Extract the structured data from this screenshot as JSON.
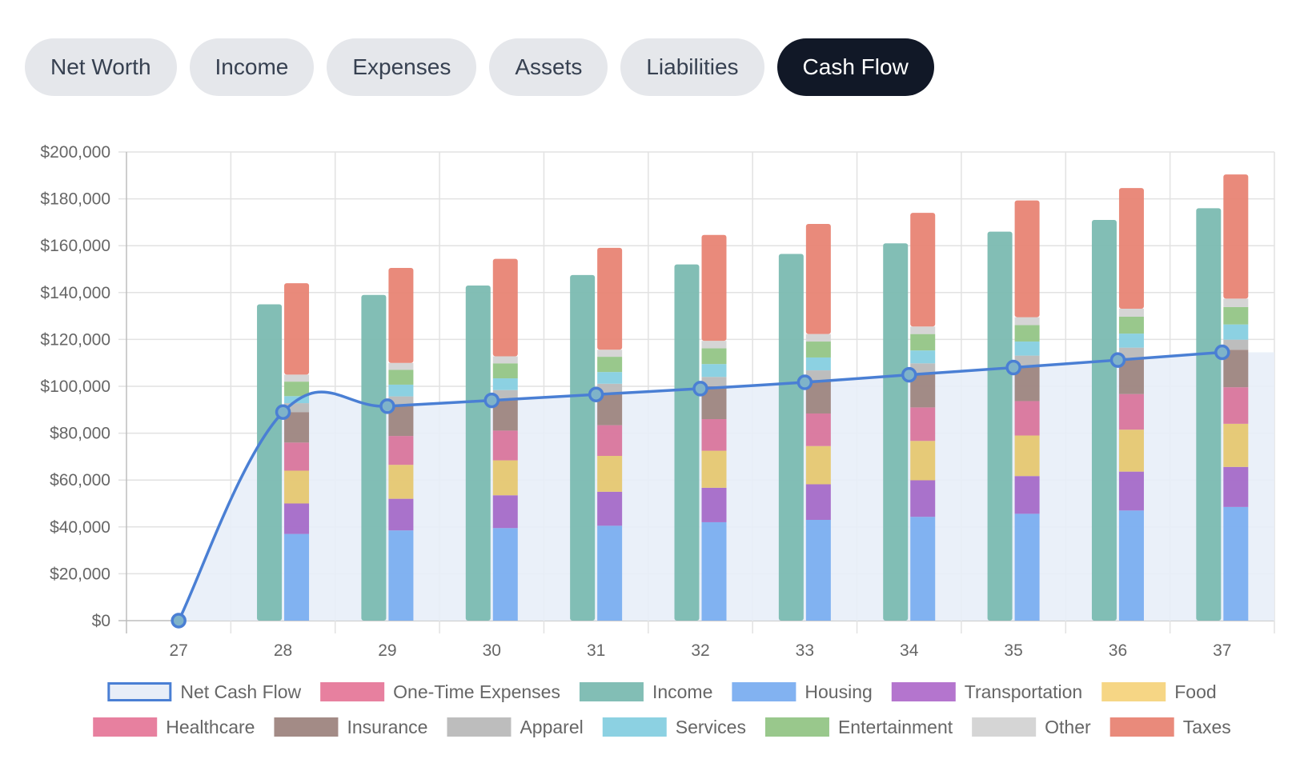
{
  "tabs": [
    {
      "label": "Net Worth",
      "active": false
    },
    {
      "label": "Income",
      "active": false
    },
    {
      "label": "Expenses",
      "active": false
    },
    {
      "label": "Assets",
      "active": false
    },
    {
      "label": "Liabilities",
      "active": false
    },
    {
      "label": "Cash Flow",
      "active": true
    }
  ],
  "chart_data": {
    "type": "bar",
    "title": "",
    "xlabel": "",
    "ylabel": "",
    "ylim": [
      0,
      200000
    ],
    "yticks": [
      "$0",
      "$20,000",
      "$40,000",
      "$60,000",
      "$80,000",
      "$100,000",
      "$120,000",
      "$140,000",
      "$160,000",
      "$180,000",
      "$200,000"
    ],
    "categories": [
      "27",
      "28",
      "29",
      "30",
      "31",
      "32",
      "33",
      "34",
      "35",
      "36",
      "37"
    ],
    "grid": true,
    "legend_position": "bottom",
    "line_series": {
      "name": "Net Cash Flow",
      "type": "area",
      "color": "#4a7fd4",
      "fill_color": "#e8eef8",
      "values": [
        0,
        89000,
        91500,
        94000,
        96500,
        99000,
        101700,
        104900,
        108000,
        111200,
        114500
      ]
    },
    "income_series": {
      "name": "Income",
      "color": "#7bbab1",
      "values": [
        0,
        135000,
        139000,
        143000,
        147500,
        152000,
        156500,
        161000,
        166000,
        171000,
        176000
      ]
    },
    "expense_series": [
      {
        "name": "Housing",
        "color": "#7baef0",
        "values": [
          0,
          37000,
          38500,
          39500,
          40500,
          42000,
          43000,
          44300,
          45600,
          47000,
          48500
        ]
      },
      {
        "name": "Transportation",
        "color": "#a56ac8",
        "values": [
          0,
          13000,
          13500,
          14000,
          14500,
          14700,
          15200,
          15600,
          16100,
          16600,
          17100
        ]
      },
      {
        "name": "Food",
        "color": "#e6c771",
        "values": [
          0,
          14000,
          14500,
          14900,
          15300,
          15800,
          16300,
          16800,
          17300,
          17900,
          18400
        ]
      },
      {
        "name": "Healthcare",
        "color": "#d9759c",
        "values": [
          0,
          12000,
          12300,
          12700,
          13100,
          13500,
          13900,
          14300,
          14700,
          15200,
          15600
        ]
      },
      {
        "name": "Insurance",
        "color": "#9e8580",
        "values": [
          0,
          13000,
          13200,
          13400,
          13700,
          14000,
          14300,
          14700,
          15200,
          15500,
          16000
        ]
      },
      {
        "name": "Apparel",
        "color": "#b9b9b9",
        "values": [
          0,
          3800,
          3700,
          3900,
          4000,
          4000,
          4100,
          4100,
          4200,
          4300,
          4300
        ]
      },
      {
        "name": "Services",
        "color": "#86cfe0",
        "values": [
          0,
          3000,
          5000,
          5000,
          5000,
          5500,
          5500,
          5500,
          6000,
          6000,
          6500
        ]
      },
      {
        "name": "Entertainment",
        "color": "#93c586",
        "values": [
          0,
          6200,
          6300,
          6400,
          6500,
          6700,
          6800,
          7000,
          7000,
          7200,
          7400
        ]
      },
      {
        "name": "Other",
        "color": "#d3d3d3",
        "values": [
          0,
          3000,
          3000,
          3000,
          3000,
          3200,
          3200,
          3200,
          3400,
          3400,
          3600
        ]
      },
      {
        "name": "Taxes",
        "color": "#e88474",
        "values": [
          0,
          39000,
          40500,
          41600,
          43500,
          45200,
          47000,
          48500,
          49800,
          51500,
          53000
        ]
      }
    ],
    "one_time_expenses": {
      "name": "One-Time Expenses",
      "color": "#e6799a",
      "values": [
        0,
        0,
        0,
        0,
        0,
        0,
        0,
        0,
        0,
        0,
        0
      ]
    },
    "legend": [
      {
        "label": "Net Cash Flow",
        "swatch": "line",
        "color": "#4a7fd4",
        "fill": "#e8eef8"
      },
      {
        "label": "One-Time Expenses",
        "color": "#e6799a"
      },
      {
        "label": "Income",
        "color": "#7bbab1"
      },
      {
        "label": "Housing",
        "color": "#7baef0"
      },
      {
        "label": "Transportation",
        "color": "#b06ecb"
      },
      {
        "label": "Food",
        "color": "#f6d47e"
      },
      {
        "label": "Healthcare",
        "color": "#e6799a"
      },
      {
        "label": "Insurance",
        "color": "#9e8580"
      },
      {
        "label": "Apparel",
        "color": "#b9b9b9"
      },
      {
        "label": "Services",
        "color": "#86cfe0"
      },
      {
        "label": "Entertainment",
        "color": "#93c586"
      },
      {
        "label": "Other",
        "color": "#d3d3d3"
      },
      {
        "label": "Taxes",
        "color": "#e88474"
      }
    ]
  }
}
